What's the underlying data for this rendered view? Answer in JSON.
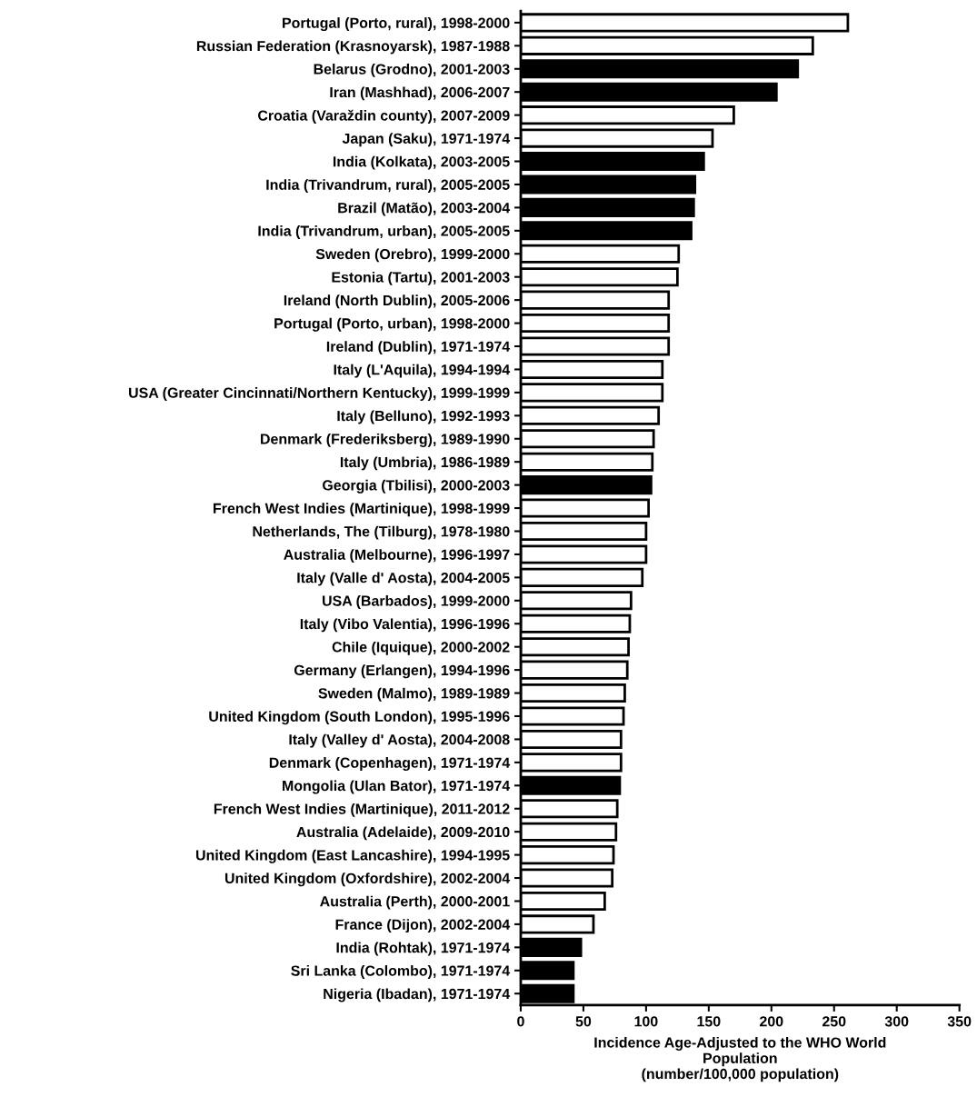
{
  "chart_data": {
    "type": "bar",
    "orientation": "horizontal",
    "xlabel": "Incidence Age-Adjusted to the WHO World\nPopulation\n(number/100,000 population)",
    "categories": [
      "Portugal (Porto, rural), 1998-2000",
      "Russian Federation (Krasnoyarsk), 1987-1988",
      "Belarus (Grodno), 2001-2003",
      "Iran (Mashhad), 2006-2007",
      "Croatia (Varaždin county), 2007-2009",
      "Japan (Saku), 1971-1974",
      "India (Kolkata), 2003-2005",
      "India (Trivandrum, rural), 2005-2005",
      "Brazil (Matão), 2003-2004",
      "India (Trivandrum, urban), 2005-2005",
      "Sweden (Orebro), 1999-2000",
      "Estonia (Tartu), 2001-2003",
      "Ireland (North Dublin), 2005-2006",
      "Portugal (Porto, urban), 1998-2000",
      "Ireland (Dublin), 1971-1974",
      "Italy (L'Aquila), 1994-1994",
      "USA (Greater Cincinnati/Northern Kentucky), 1999-1999",
      "Italy (Belluno), 1992-1993",
      "Denmark (Frederiksberg), 1989-1990",
      "Italy (Umbria), 1986-1989",
      "Georgia (Tbilisi), 2000-2003",
      "French West Indies (Martinique), 1998-1999",
      "Netherlands, The (Tilburg), 1978-1980",
      "Australia (Melbourne), 1996-1997",
      "Italy (Valle d' Aosta), 2004-2005",
      "USA (Barbados), 1999-2000",
      "Italy (Vibo Valentia), 1996-1996",
      "Chile (Iquique), 2000-2002",
      "Germany (Erlangen), 1994-1996",
      "Sweden (Malmo), 1989-1989",
      "United Kingdom (South London), 1995-1996",
      "Italy (Valley d' Aosta), 2004-2008",
      "Denmark (Copenhagen), 1971-1974",
      "Mongolia (Ulan Bator), 1971-1974",
      "French West Indies (Martinique), 2011-2012",
      "Australia (Adelaide), 2009-2010",
      "United Kingdom (East Lancashire), 1994-1995",
      "United Kingdom (Oxfordshire), 2002-2004",
      "Australia (Perth), 2000-2001",
      "France (Dijon), 2002-2004",
      "India (Rohtak), 1971-1974",
      "Sri Lanka (Colombo), 1971-1974",
      "Nigeria (Ibadan), 1971-1974"
    ],
    "values": [
      261,
      233,
      221,
      204,
      170,
      153,
      146,
      139,
      138,
      136,
      126,
      125,
      118,
      118,
      118,
      113,
      113,
      110,
      106,
      105,
      104,
      102,
      100,
      100,
      97,
      88,
      87,
      86,
      85,
      83,
      82,
      80,
      80,
      79,
      77,
      76,
      74,
      73,
      67,
      58,
      48,
      42,
      42
    ],
    "colors": [
      "#ffffff",
      "#ffffff",
      "#000000",
      "#000000",
      "#ffffff",
      "#ffffff",
      "#000000",
      "#000000",
      "#000000",
      "#000000",
      "#ffffff",
      "#ffffff",
      "#ffffff",
      "#ffffff",
      "#ffffff",
      "#ffffff",
      "#ffffff",
      "#ffffff",
      "#ffffff",
      "#ffffff",
      "#000000",
      "#ffffff",
      "#ffffff",
      "#ffffff",
      "#ffffff",
      "#ffffff",
      "#ffffff",
      "#ffffff",
      "#ffffff",
      "#ffffff",
      "#ffffff",
      "#ffffff",
      "#ffffff",
      "#000000",
      "#ffffff",
      "#ffffff",
      "#ffffff",
      "#ffffff",
      "#ffffff",
      "#ffffff",
      "#000000",
      "#000000",
      "#000000"
    ],
    "xlim": [
      0,
      350
    ],
    "xticks": [
      0,
      50,
      100,
      150,
      200,
      250,
      300,
      350
    ],
    "grid": false
  }
}
